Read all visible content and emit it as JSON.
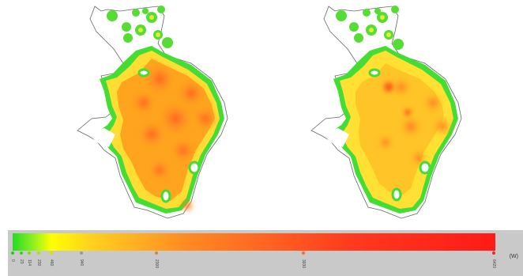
{
  "legend": {
    "unit": "(W)",
    "ticks": [
      {
        "label": "0",
        "color": "#22cc22"
      },
      {
        "label": "23",
        "color": "#44cc22"
      },
      {
        "label": "114",
        "color": "#77dd22"
      },
      {
        "label": "230",
        "color": "#aadd22"
      },
      {
        "label": "460",
        "color": "#dddd00"
      },
      {
        "label": "940",
        "color": "#999999"
      },
      {
        "label": "2300",
        "color": "#cc8844"
      },
      {
        "label": "3930",
        "color": "#ff6644"
      },
      {
        "label": "6420",
        "color": "#ff2222"
      }
    ]
  }
}
